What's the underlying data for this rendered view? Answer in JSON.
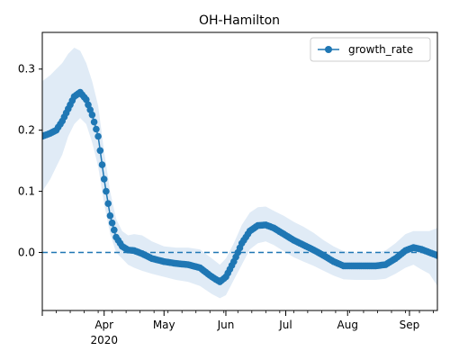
{
  "chart_data": {
    "type": "line",
    "title": "OH-Hamilton",
    "xlabel": "",
    "ylabel": "",
    "x_axis": {
      "type": "date",
      "range": [
        "2020-03-01",
        "2020-09-15"
      ],
      "month_ticks": [
        {
          "date": "2020-04-01",
          "label": "Apr"
        },
        {
          "date": "2020-05-01",
          "label": "May"
        },
        {
          "date": "2020-06-01",
          "label": "Jun"
        },
        {
          "date": "2020-07-01",
          "label": "Jul"
        },
        {
          "date": "2020-08-01",
          "label": "Aug"
        },
        {
          "date": "2020-09-01",
          "label": "Sep"
        }
      ],
      "year_label": {
        "date": "2020-04-01",
        "label": "2020"
      }
    },
    "y_axis": {
      "range": [
        -0.095,
        0.36
      ],
      "ticks": [
        {
          "value": 0.0,
          "label": "0.0"
        },
        {
          "value": 0.1,
          "label": "0.1"
        },
        {
          "value": 0.2,
          "label": "0.2"
        },
        {
          "value": 0.3,
          "label": "0.3"
        }
      ]
    },
    "reference_line": {
      "value": 0.0,
      "style": "dashed",
      "color": "#1f77b4"
    },
    "legend": {
      "location": "upper-right",
      "entries": [
        "growth_rate"
      ]
    },
    "colors": {
      "line": "#1f77b4",
      "band": "#c6dbef"
    },
    "series": [
      {
        "name": "growth_rate",
        "x": [
          "2020-03-01",
          "2020-03-05",
          "2020-03-08",
          "2020-03-11",
          "2020-03-14",
          "2020-03-17",
          "2020-03-20",
          "2020-03-23",
          "2020-03-26",
          "2020-03-29",
          "2020-04-01",
          "2020-04-04",
          "2020-04-07",
          "2020-04-10",
          "2020-04-13",
          "2020-04-16",
          "2020-04-20",
          "2020-04-25",
          "2020-05-01",
          "2020-05-07",
          "2020-05-13",
          "2020-05-19",
          "2020-05-25",
          "2020-05-29",
          "2020-06-01",
          "2020-06-05",
          "2020-06-09",
          "2020-06-13",
          "2020-06-17",
          "2020-06-21",
          "2020-06-25",
          "2020-06-30",
          "2020-07-05",
          "2020-07-10",
          "2020-07-15",
          "2020-07-20",
          "2020-07-25",
          "2020-07-30",
          "2020-08-05",
          "2020-08-10",
          "2020-08-15",
          "2020-08-20",
          "2020-08-25",
          "2020-08-30",
          "2020-09-03",
          "2020-09-07",
          "2020-09-11",
          "2020-09-15"
        ],
        "y": [
          0.19,
          0.195,
          0.2,
          0.215,
          0.235,
          0.255,
          0.262,
          0.25,
          0.225,
          0.19,
          0.12,
          0.06,
          0.025,
          0.01,
          0.004,
          0.003,
          -0.002,
          -0.01,
          -0.015,
          -0.018,
          -0.02,
          -0.025,
          -0.04,
          -0.048,
          -0.04,
          -0.015,
          0.015,
          0.035,
          0.044,
          0.045,
          0.04,
          0.03,
          0.02,
          0.012,
          0.004,
          -0.005,
          -0.015,
          -0.022,
          -0.022,
          -0.022,
          -0.022,
          -0.02,
          -0.01,
          0.003,
          0.008,
          0.005,
          0.0,
          -0.005
        ],
        "lower": [
          0.1,
          0.12,
          0.14,
          0.16,
          0.19,
          0.21,
          0.22,
          0.21,
          0.18,
          0.14,
          0.08,
          0.03,
          0.0,
          -0.01,
          -0.02,
          -0.025,
          -0.03,
          -0.035,
          -0.04,
          -0.045,
          -0.048,
          -0.055,
          -0.068,
          -0.075,
          -0.07,
          -0.045,
          -0.02,
          0.005,
          0.015,
          0.018,
          0.012,
          0.002,
          -0.008,
          -0.015,
          -0.022,
          -0.03,
          -0.038,
          -0.044,
          -0.045,
          -0.045,
          -0.045,
          -0.043,
          -0.035,
          -0.025,
          -0.02,
          -0.028,
          -0.035,
          -0.055
        ],
        "upper": [
          0.28,
          0.29,
          0.3,
          0.31,
          0.325,
          0.335,
          0.33,
          0.31,
          0.28,
          0.24,
          0.165,
          0.1,
          0.055,
          0.035,
          0.028,
          0.03,
          0.028,
          0.018,
          0.01,
          0.008,
          0.008,
          0.005,
          -0.01,
          -0.02,
          -0.01,
          0.015,
          0.045,
          0.065,
          0.074,
          0.075,
          0.068,
          0.06,
          0.05,
          0.042,
          0.032,
          0.02,
          0.01,
          0.002,
          0.0,
          0.0,
          0.0,
          0.003,
          0.015,
          0.03,
          0.035,
          0.035,
          0.035,
          0.04
        ]
      }
    ]
  }
}
